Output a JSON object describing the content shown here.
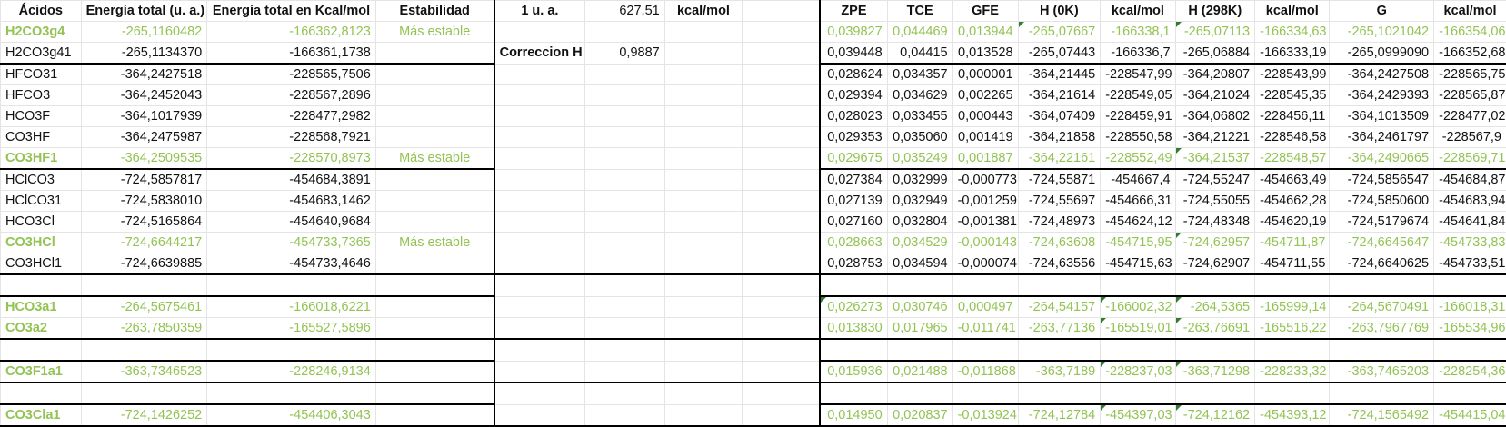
{
  "sheet_name": "acidos",
  "headers": [
    "Ácidos",
    "Energía total (u. a.)",
    "Energía total en Kcal/mol",
    "Estabilidad",
    "1 u. a.",
    "627,51",
    "kcal/mol",
    "",
    "ZPE",
    "TCE",
    "GFE",
    "H (0K)",
    "kcal/mol",
    "H (298K)",
    "kcal/mol",
    "G",
    "kcal/mol"
  ],
  "rows": [
    {
      "name": "H2CO3g4",
      "ua": "-265,1160482",
      "kcal": "-166362,8123",
      "estab": "Más estable",
      "e": "",
      "f": "",
      "g": "",
      "h": "",
      "zpe": "0,039827",
      "tce": "0,044469",
      "gfe": "0,013944",
      "h0": "-265,07667",
      "h0k": "-166338,1",
      "h298": "-265,07113",
      "h298k": "-166334,63",
      "gg": "-265,1021042",
      "gk": "-166354,06"
    },
    {
      "name": "H2CO3g41",
      "ua": "-265,1134370",
      "kcal": "-166361,1738",
      "estab": "",
      "e": "Correccion H",
      "f": "0,9887",
      "g": "",
      "h": "",
      "zpe": "0,039448",
      "tce": "0,04415",
      "gfe": "0,013528",
      "h0": "-265,07443",
      "h0k": "-166336,7",
      "h298": "-265,06884",
      "h298k": "-166333,19",
      "gg": "-265,0999090",
      "gk": "-166352,68"
    },
    {
      "name": "HFCO31",
      "ua": "-364,2427518",
      "kcal": "-228565,7506",
      "estab": "",
      "e": "",
      "f": "",
      "g": "",
      "h": "",
      "zpe": "0,028624",
      "tce": "0,034357",
      "gfe": "0,000001",
      "h0": "-364,21445",
      "h0k": "-228547,99",
      "h298": "-364,20807",
      "h298k": "-228543,99",
      "gg": "-364,2427508",
      "gk": "-228565,75"
    },
    {
      "name": "HFCO3",
      "ua": "-364,2452043",
      "kcal": "-228567,2896",
      "estab": "",
      "e": "",
      "f": "",
      "g": "",
      "h": "",
      "zpe": "0,029394",
      "tce": "0,034629",
      "gfe": "0,002265",
      "h0": "-364,21614",
      "h0k": "-228549,05",
      "h298": "-364,21024",
      "h298k": "-228545,35",
      "gg": "-364,2429393",
      "gk": "-228565,87"
    },
    {
      "name": "HCO3F",
      "ua": "-364,1017939",
      "kcal": "-228477,2982",
      "estab": "",
      "e": "",
      "f": "",
      "g": "",
      "h": "",
      "zpe": "0,028023",
      "tce": "0,033455",
      "gfe": "0,000443",
      "h0": "-364,07409",
      "h0k": "-228459,91",
      "h298": "-364,06802",
      "h298k": "-228456,11",
      "gg": "-364,1013509",
      "gk": "-228477,02"
    },
    {
      "name": "CO3HF",
      "ua": "-364,2475987",
      "kcal": "-228568,7921",
      "estab": "",
      "e": "",
      "f": "",
      "g": "",
      "h": "",
      "zpe": "0,029353",
      "tce": "0,035060",
      "gfe": "0,001419",
      "h0": "-364,21858",
      "h0k": "-228550,58",
      "h298": "-364,21221",
      "h298k": "-228546,58",
      "gg": "-364,2461797",
      "gk": "-228567,9"
    },
    {
      "name": "CO3HF1",
      "ua": "-364,2509535",
      "kcal": "-228570,8973",
      "estab": "Más estable",
      "e": "",
      "f": "",
      "g": "",
      "h": "",
      "zpe": "0,029675",
      "tce": "0,035249",
      "gfe": "0,001887",
      "h0": "-364,22161",
      "h0k": "-228552,49",
      "h298": "-364,21537",
      "h298k": "-228548,57",
      "gg": "-364,2490665",
      "gk": "-228569,71"
    },
    {
      "name": "HClCO3",
      "ua": "-724,5857817",
      "kcal": "-454684,3891",
      "estab": "",
      "e": "",
      "f": "",
      "g": "",
      "h": "",
      "zpe": "0,027384",
      "tce": "0,032999",
      "gfe": "-0,000773",
      "h0": "-724,55871",
      "h0k": "-454667,4",
      "h298": "-724,55247",
      "h298k": "-454663,49",
      "gg": "-724,5856547",
      "gk": "-454684,87"
    },
    {
      "name": "HClCO31",
      "ua": "-724,5838010",
      "kcal": "-454683,1462",
      "estab": "",
      "e": "",
      "f": "",
      "g": "",
      "h": "",
      "zpe": "0,027139",
      "tce": "0,032949",
      "gfe": "-0,001259",
      "h0": "-724,55697",
      "h0k": "-454666,31",
      "h298": "-724,55055",
      "h298k": "-454662,28",
      "gg": "-724,5850600",
      "gk": "-454683,94"
    },
    {
      "name": "HCO3Cl",
      "ua": "-724,5165864",
      "kcal": "-454640,9684",
      "estab": "",
      "e": "",
      "f": "",
      "g": "",
      "h": "",
      "zpe": "0,027160",
      "tce": "0,032804",
      "gfe": "-0,001381",
      "h0": "-724,48973",
      "h0k": "-454624,12",
      "h298": "-724,48348",
      "h298k": "-454620,19",
      "gg": "-724,5179674",
      "gk": "-454641,84"
    },
    {
      "name": "CO3HCl",
      "ua": "-724,6644217",
      "kcal": "-454733,7365",
      "estab": "Más estable",
      "e": "",
      "f": "",
      "g": "",
      "h": "",
      "zpe": "0,028663",
      "tce": "0,034529",
      "gfe": "-0,000143",
      "h0": "-724,63608",
      "h0k": "-454715,95",
      "h298": "-724,62957",
      "h298k": "-454711,87",
      "gg": "-724,6645647",
      "gk": "-454733,83"
    },
    {
      "name": "CO3HCl1",
      "ua": "-724,6639885",
      "kcal": "-454733,4646",
      "estab": "",
      "e": "",
      "f": "",
      "g": "",
      "h": "",
      "zpe": "0,028753",
      "tce": "0,034594",
      "gfe": "-0,000074",
      "h0": "-724,63556",
      "h0k": "-454715,63",
      "h298": "-724,62907",
      "h298k": "-454711,55",
      "gg": "-724,6640625",
      "gk": "-454733,51"
    },
    {
      "name": "",
      "ua": "",
      "kcal": "",
      "estab": "",
      "e": "",
      "f": "",
      "g": "",
      "h": "",
      "zpe": "",
      "tce": "",
      "gfe": "",
      "h0": "",
      "h0k": "",
      "h298": "",
      "h298k": "",
      "gg": "",
      "gk": ""
    },
    {
      "name": "HCO3a1",
      "ua": "-264,5675461",
      "kcal": "-166018,6221",
      "estab": "",
      "e": "",
      "f": "",
      "g": "",
      "h": "",
      "zpe": "0,026273",
      "tce": "0,030746",
      "gfe": "0,000497",
      "h0": "-264,54157",
      "h0k": "-166002,32",
      "h298": "-264,5365",
      "h298k": "-165999,14",
      "gg": "-264,5670491",
      "gk": "-166018,31"
    },
    {
      "name": "CO3a2",
      "ua": "-263,7850359",
      "kcal": "-165527,5896",
      "estab": "",
      "e": "",
      "f": "",
      "g": "",
      "h": "",
      "zpe": "0,013830",
      "tce": "0,017965",
      "gfe": "-0,011741",
      "h0": "-263,77136",
      "h0k": "-165519,01",
      "h298": "-263,76691",
      "h298k": "-165516,22",
      "gg": "-263,7967769",
      "gk": "-165534,96"
    },
    {
      "name": "",
      "ua": "",
      "kcal": "",
      "estab": "",
      "e": "",
      "f": "",
      "g": "",
      "h": "",
      "zpe": "",
      "tce": "",
      "gfe": "",
      "h0": "",
      "h0k": "",
      "h298": "",
      "h298k": "",
      "gg": "",
      "gk": ""
    },
    {
      "name": "CO3F1a1",
      "ua": "-363,7346523",
      "kcal": "-228246,9134",
      "estab": "",
      "e": "",
      "f": "",
      "g": "",
      "h": "",
      "zpe": "0,015936",
      "tce": "0,021488",
      "gfe": "-0,011868",
      "h0": "-363,7189",
      "h0k": "-228237,03",
      "h298": "-363,71298",
      "h298k": "-228233,32",
      "gg": "-363,7465203",
      "gk": "-228254,36"
    },
    {
      "name": "",
      "ua": "",
      "kcal": "",
      "estab": "",
      "e": "",
      "f": "",
      "g": "",
      "h": "",
      "zpe": "",
      "tce": "",
      "gfe": "",
      "h0": "",
      "h0k": "",
      "h298": "",
      "h298k": "",
      "gg": "",
      "gk": ""
    },
    {
      "name": "CO3Cla1",
      "ua": "-724,1426252",
      "kcal": "-454406,3043",
      "estab": "",
      "e": "",
      "f": "",
      "g": "",
      "h": "",
      "zpe": "0,014950",
      "tce": "0,020837",
      "gfe": "-0,013924",
      "h0": "-724,12784",
      "h0k": "-454397,03",
      "h298": "-724,12162",
      "h298k": "-454393,12",
      "gg": "-724,1565492",
      "gk": "-454415,04"
    }
  ],
  "colors": {
    "green_text": "#92c353",
    "border": "#000000",
    "gridline": "#e4e4e4",
    "indicator": "#2e7d32"
  }
}
